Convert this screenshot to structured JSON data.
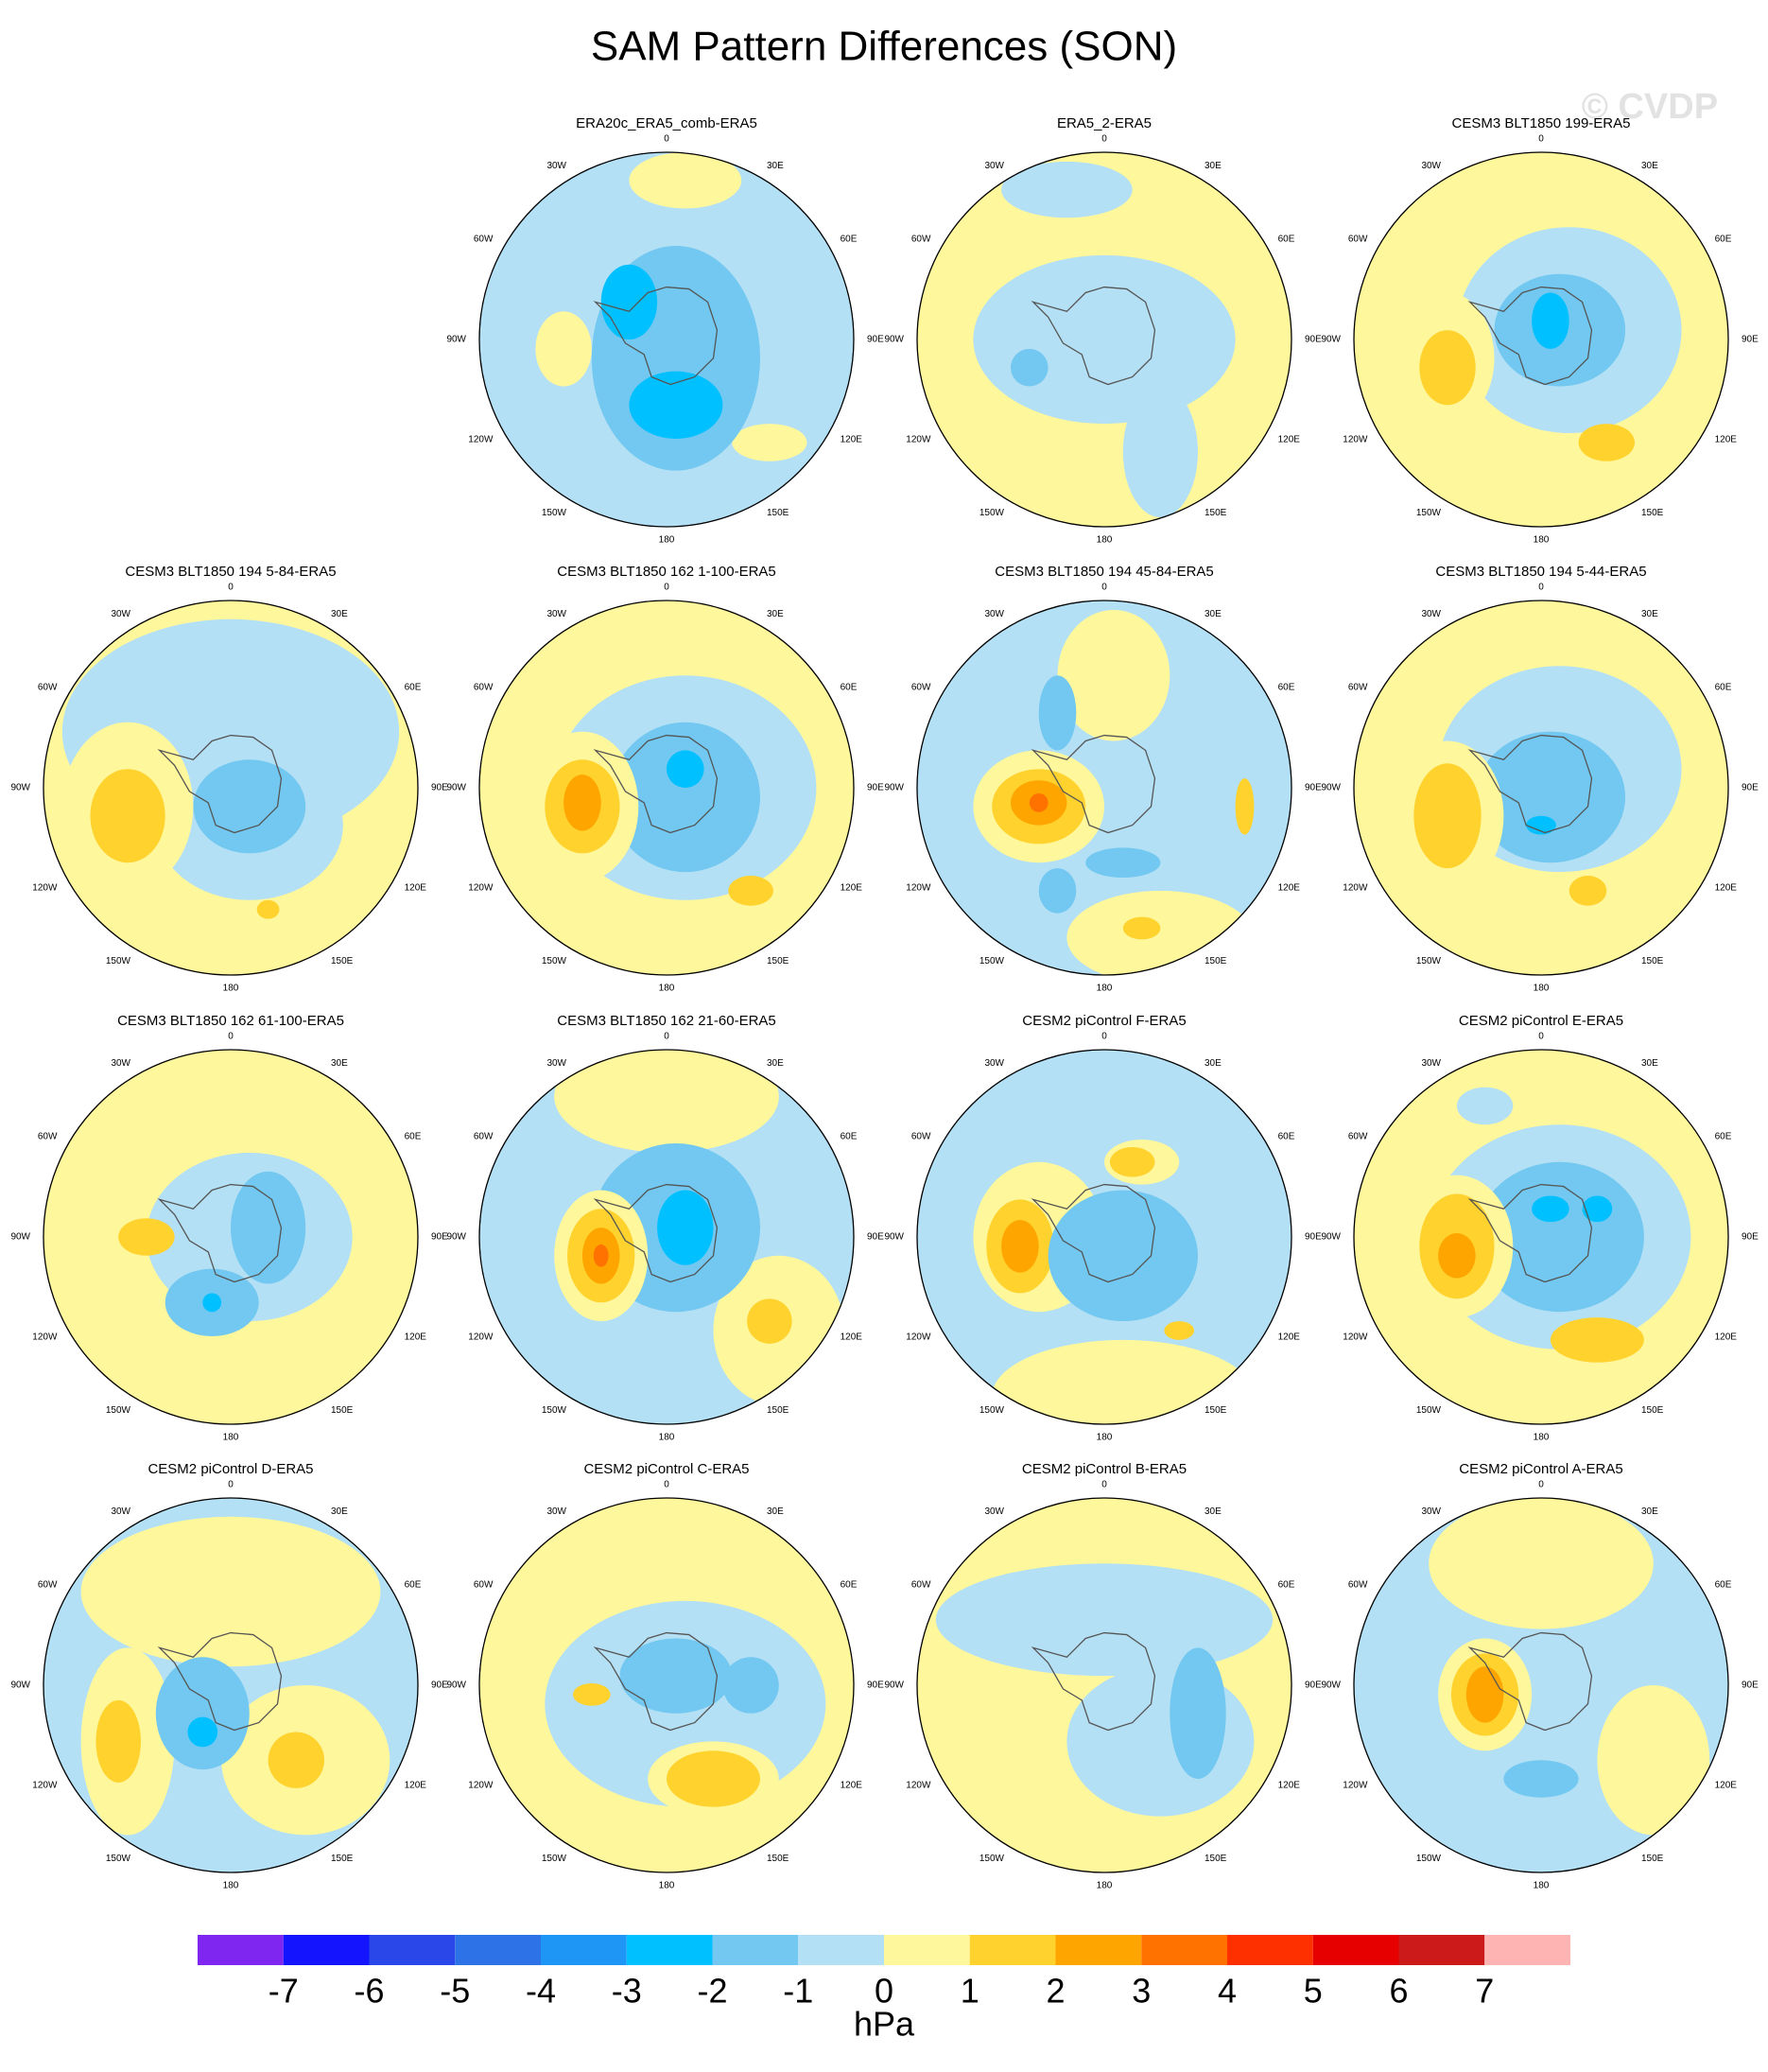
{
  "title": "SAM Pattern Differences (SON)",
  "watermark": "© CVDP",
  "lon_labels": [
    "0",
    "30E",
    "60E",
    "90E",
    "120E",
    "150E",
    "180",
    "150W",
    "120W",
    "90W",
    "60W",
    "30W"
  ],
  "maps": [
    {
      "title": "ERA20c_ERA5_comb-ERA5"
    },
    {
      "title": "ERA5_2-ERA5"
    },
    {
      "title": "CESM3 BLT1850 199-ERA5"
    },
    {
      "title": "CESM3 BLT1850 194 5-84-ERA5"
    },
    {
      "title": "CESM3 BLT1850 162 1-100-ERA5"
    },
    {
      "title": "CESM3 BLT1850 194 45-84-ERA5"
    },
    {
      "title": "CESM3 BLT1850 194 5-44-ERA5"
    },
    {
      "title": "CESM3 BLT1850 162 61-100-ERA5"
    },
    {
      "title": "CESM3 BLT1850 162 21-60-ERA5"
    },
    {
      "title": "CESM2 piControl F-ERA5"
    },
    {
      "title": "CESM2 piControl E-ERA5"
    },
    {
      "title": "CESM2 piControl D-ERA5"
    },
    {
      "title": "CESM2 piControl C-ERA5"
    },
    {
      "title": "CESM2 piControl B-ERA5"
    },
    {
      "title": "CESM2 piControl A-ERA5"
    }
  ],
  "colorbar": {
    "colors": [
      "#7f27f0",
      "#1414ff",
      "#2a47ea",
      "#2e72e8",
      "#1e96f5",
      "#00c0ff",
      "#72c8f0",
      "#b4e0f5",
      "#fff79c",
      "#ffd22e",
      "#ffa500",
      "#ff7200",
      "#ff3000",
      "#e60000",
      "#cc1a1a",
      "#ffb4b4"
    ],
    "levels": [
      -7,
      -6,
      -5,
      -4,
      -3,
      -2,
      -1,
      0,
      1,
      2,
      3,
      4,
      5,
      6,
      7
    ],
    "label": "hPa"
  }
}
